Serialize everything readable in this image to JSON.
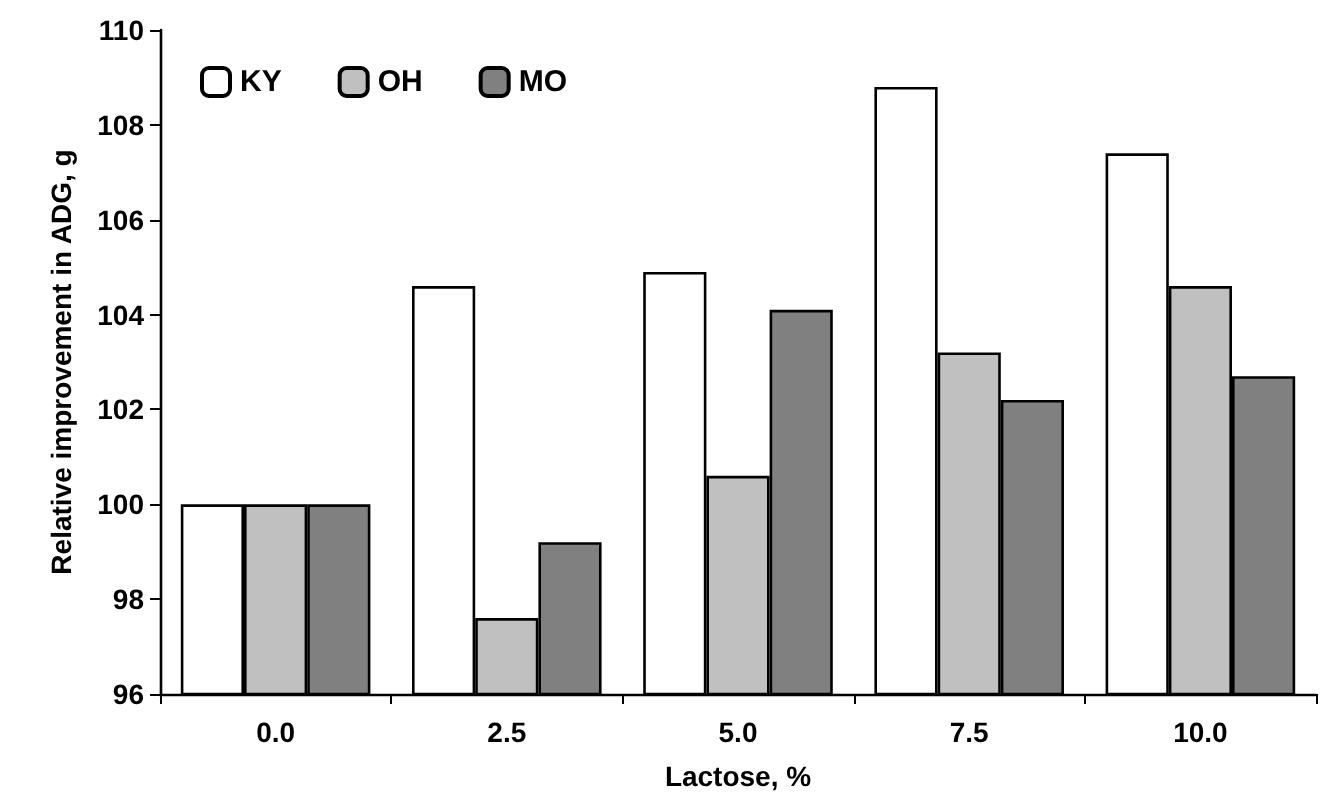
{
  "chart_data": {
    "type": "bar",
    "xlabel": "Lactose, %",
    "ylabel": "Relative improvement in ADG, g",
    "categories": [
      "0.0",
      "2.5",
      "5.0",
      "7.5",
      "10.0"
    ],
    "series": [
      {
        "name": "KY",
        "color": "#ffffff",
        "values": [
          100,
          104.6,
          104.9,
          108.8,
          107.4
        ]
      },
      {
        "name": "OH",
        "color": "#c0c0c0",
        "values": [
          100,
          97.6,
          100.6,
          103.2,
          104.6
        ]
      },
      {
        "name": "MO",
        "color": "#808080",
        "values": [
          100,
          99.2,
          104.1,
          102.2,
          102.7
        ]
      }
    ],
    "ylim": [
      96,
      110
    ],
    "yticks": [
      96,
      98,
      100,
      102,
      104,
      106,
      108,
      110
    ],
    "grid": false,
    "legend": "top left"
  }
}
